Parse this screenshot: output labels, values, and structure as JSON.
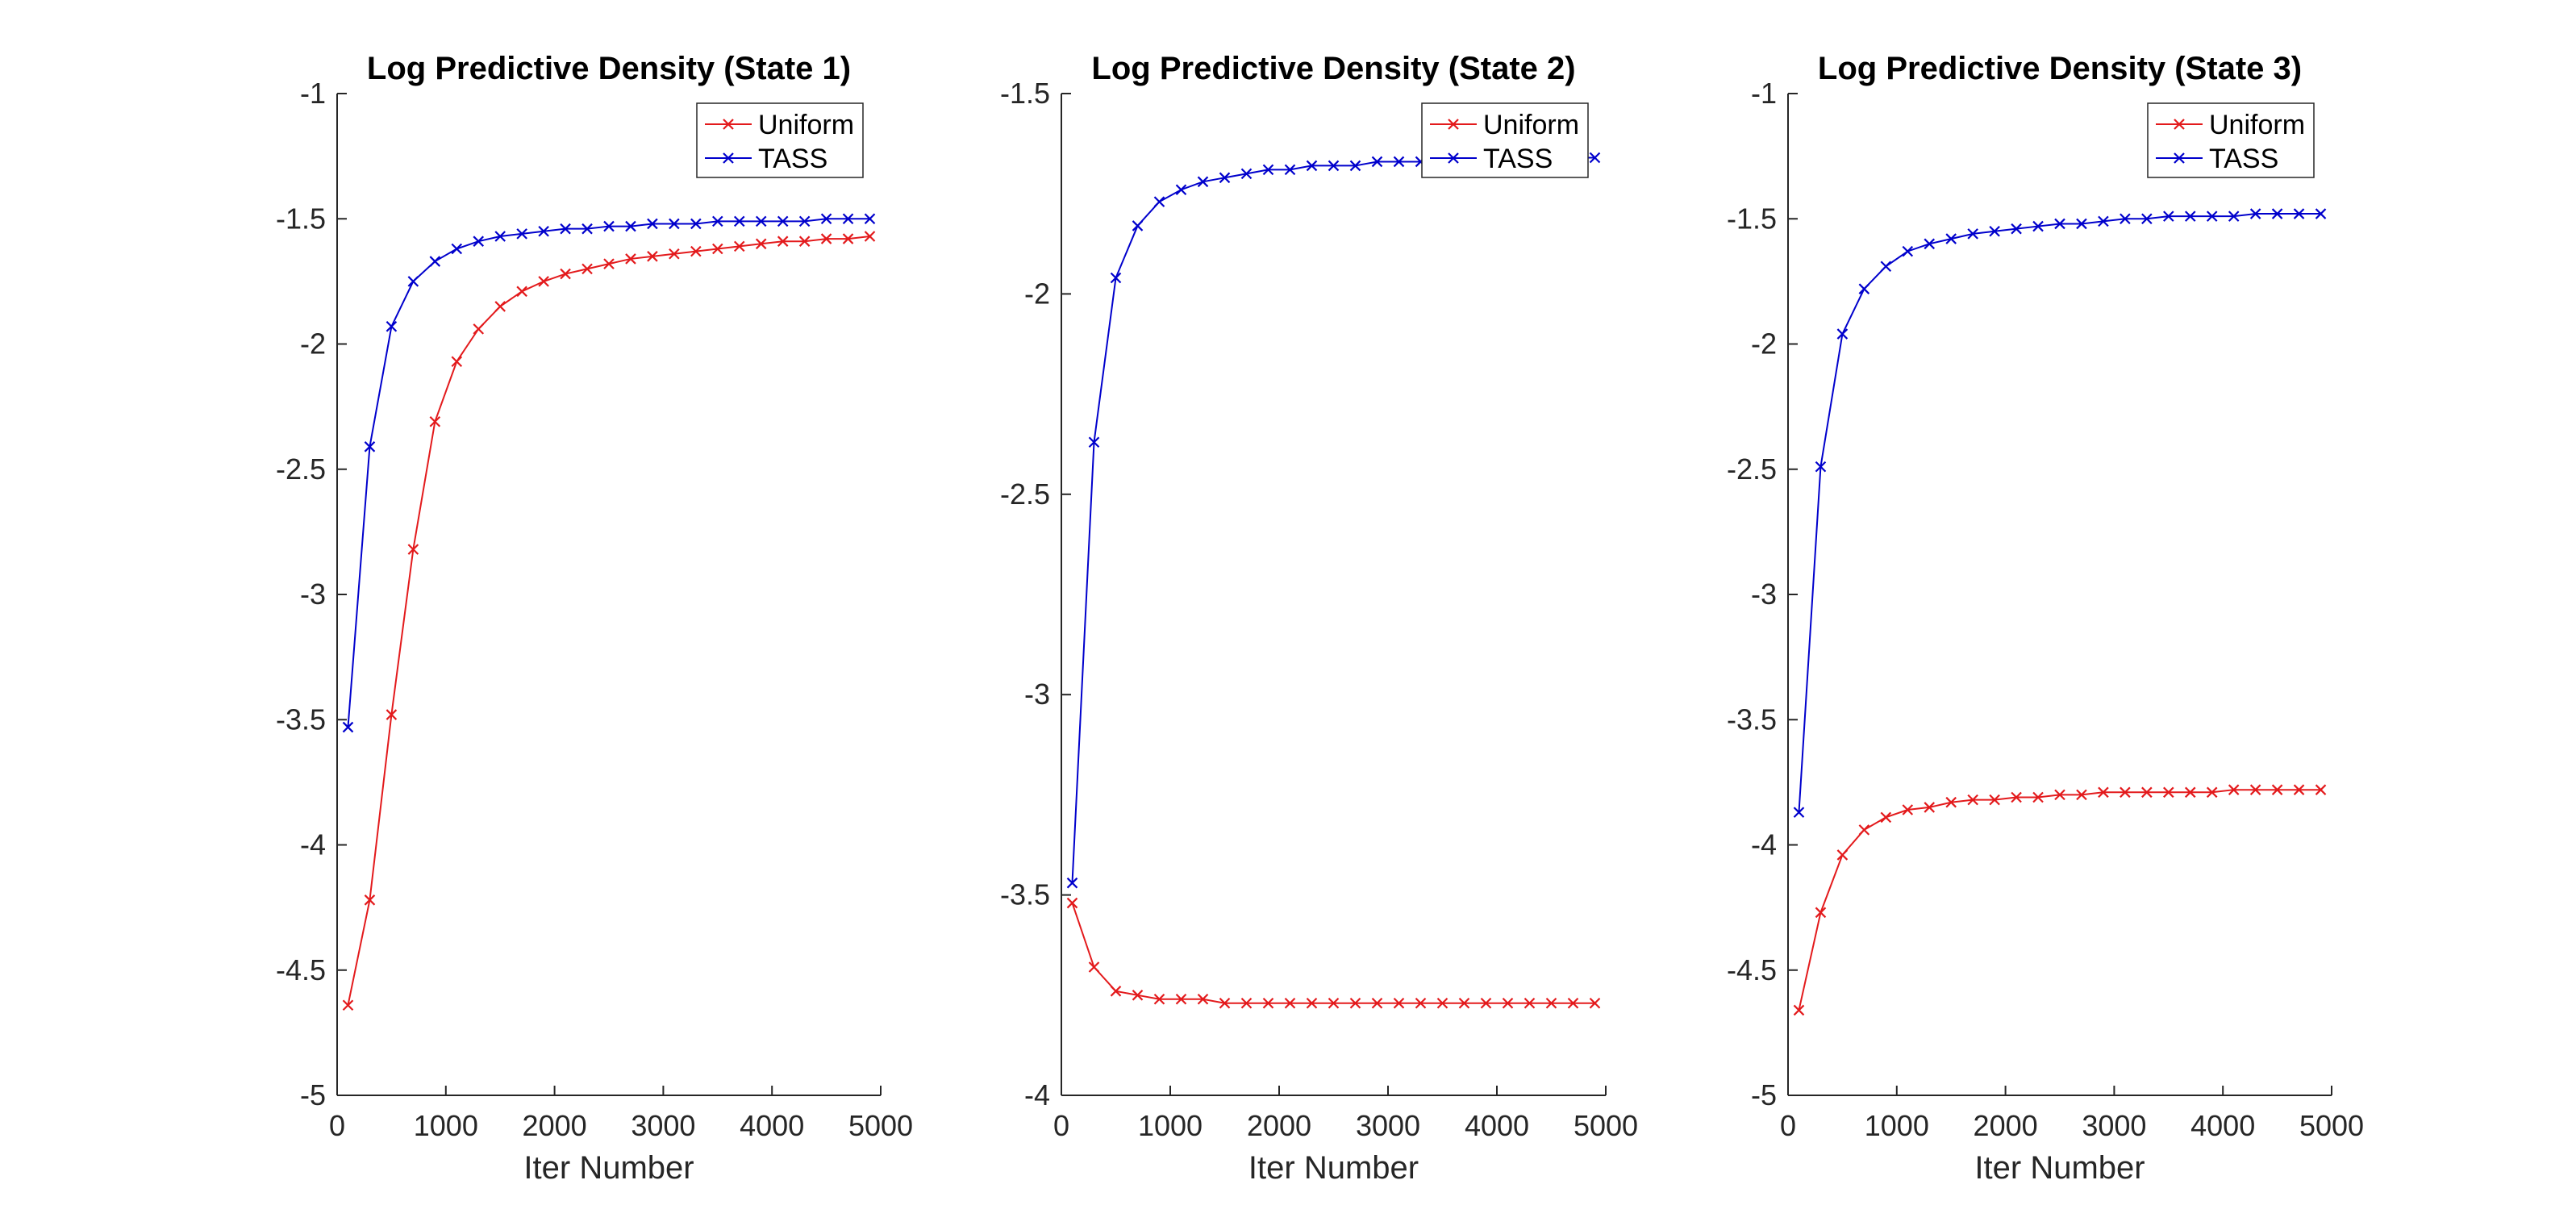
{
  "colors": {
    "uniform": "#e31a1c",
    "tass": "#0000cc"
  },
  "chart_data": [
    {
      "type": "line",
      "title": "Log Predictive Density (State 1)",
      "xlabel": "Iter Number",
      "ylabel": "",
      "xlim": [
        0,
        5000
      ],
      "ylim": [
        -5,
        -1
      ],
      "xticks": [
        0,
        1000,
        2000,
        3000,
        4000,
        5000
      ],
      "yticks": [
        -5,
        -4.5,
        -4,
        -3.5,
        -3,
        -2.5,
        -2,
        -1.5,
        -1
      ],
      "xtick_labels": [
        "0",
        "1000",
        "2000",
        "3000",
        "4000",
        "5000"
      ],
      "ytick_labels": [
        "-5",
        "-4.5",
        "-4",
        "-3.5",
        "-3",
        "-2.5",
        "-2",
        "-1.5",
        "-1"
      ],
      "legend_position": "top-right",
      "grid": false,
      "x": [
        100,
        300,
        500,
        700,
        900,
        1100,
        1300,
        1500,
        1700,
        1900,
        2100,
        2300,
        2500,
        2700,
        2900,
        3100,
        3300,
        3500,
        3700,
        3900,
        4100,
        4300,
        4500,
        4700,
        4900
      ],
      "series": [
        {
          "name": "Uniform",
          "color_key": "uniform",
          "values": [
            -4.64,
            -4.22,
            -3.48,
            -2.82,
            -2.31,
            -2.07,
            -1.94,
            -1.85,
            -1.79,
            -1.75,
            -1.72,
            -1.7,
            -1.68,
            -1.66,
            -1.65,
            -1.64,
            -1.63,
            -1.62,
            -1.61,
            -1.6,
            -1.59,
            -1.59,
            -1.58,
            -1.58,
            -1.57
          ]
        },
        {
          "name": "TASS",
          "color_key": "tass",
          "values": [
            -3.53,
            -2.41,
            -1.93,
            -1.75,
            -1.67,
            -1.62,
            -1.59,
            -1.57,
            -1.56,
            -1.55,
            -1.54,
            -1.54,
            -1.53,
            -1.53,
            -1.52,
            -1.52,
            -1.52,
            -1.51,
            -1.51,
            -1.51,
            -1.51,
            -1.51,
            -1.5,
            -1.5,
            -1.5
          ]
        }
      ]
    },
    {
      "type": "line",
      "title": "Log Predictive Density (State 2)",
      "xlabel": "Iter Number",
      "ylabel": "",
      "xlim": [
        0,
        5000
      ],
      "ylim": [
        -4,
        -1.5
      ],
      "xticks": [
        0,
        1000,
        2000,
        3000,
        4000,
        5000
      ],
      "yticks": [
        -4,
        -3.5,
        -3,
        -2.5,
        -2,
        -1.5
      ],
      "xtick_labels": [
        "0",
        "1000",
        "2000",
        "3000",
        "4000",
        "5000"
      ],
      "ytick_labels": [
        "-4",
        "-3.5",
        "-3",
        "-2.5",
        "-2",
        "-1.5"
      ],
      "legend_position": "top-right",
      "grid": false,
      "x": [
        100,
        300,
        500,
        700,
        900,
        1100,
        1300,
        1500,
        1700,
        1900,
        2100,
        2300,
        2500,
        2700,
        2900,
        3100,
        3300,
        3500,
        3700,
        3900,
        4100,
        4300,
        4500,
        4700,
        4900
      ],
      "series": [
        {
          "name": "Uniform",
          "color_key": "uniform",
          "values": [
            -3.52,
            -3.68,
            -3.74,
            -3.75,
            -3.76,
            -3.76,
            -3.76,
            -3.77,
            -3.77,
            -3.77,
            -3.77,
            -3.77,
            -3.77,
            -3.77,
            -3.77,
            -3.77,
            -3.77,
            -3.77,
            -3.77,
            -3.77,
            -3.77,
            -3.77,
            -3.77,
            -3.77,
            -3.77
          ]
        },
        {
          "name": "TASS",
          "color_key": "tass",
          "values": [
            -3.47,
            -2.37,
            -1.96,
            -1.83,
            -1.77,
            -1.74,
            -1.72,
            -1.71,
            -1.7,
            -1.69,
            -1.69,
            -1.68,
            -1.68,
            -1.68,
            -1.67,
            -1.67,
            -1.67,
            -1.67,
            -1.67,
            -1.67,
            -1.67,
            -1.66,
            -1.66,
            -1.66,
            -1.66
          ]
        }
      ]
    },
    {
      "type": "line",
      "title": "Log Predictive Density (State 3)",
      "xlabel": "Iter Number",
      "ylabel": "",
      "xlim": [
        0,
        5000
      ],
      "ylim": [
        -5,
        -1
      ],
      "xticks": [
        0,
        1000,
        2000,
        3000,
        4000,
        5000
      ],
      "yticks": [
        -5,
        -4.5,
        -4,
        -3.5,
        -3,
        -2.5,
        -2,
        -1.5,
        -1
      ],
      "xtick_labels": [
        "0",
        "1000",
        "2000",
        "3000",
        "4000",
        "5000"
      ],
      "ytick_labels": [
        "-5",
        "-4.5",
        "-4",
        "-3.5",
        "-3",
        "-2.5",
        "-2",
        "-1.5",
        "-1"
      ],
      "legend_position": "top-right",
      "grid": false,
      "x": [
        100,
        300,
        500,
        700,
        900,
        1100,
        1300,
        1500,
        1700,
        1900,
        2100,
        2300,
        2500,
        2700,
        2900,
        3100,
        3300,
        3500,
        3700,
        3900,
        4100,
        4300,
        4500,
        4700,
        4900
      ],
      "series": [
        {
          "name": "Uniform",
          "color_key": "uniform",
          "values": [
            -4.66,
            -4.27,
            -4.04,
            -3.94,
            -3.89,
            -3.86,
            -3.85,
            -3.83,
            -3.82,
            -3.82,
            -3.81,
            -3.81,
            -3.8,
            -3.8,
            -3.79,
            -3.79,
            -3.79,
            -3.79,
            -3.79,
            -3.79,
            -3.78,
            -3.78,
            -3.78,
            -3.78,
            -3.78
          ]
        },
        {
          "name": "TASS",
          "color_key": "tass",
          "values": [
            -3.87,
            -2.49,
            -1.96,
            -1.78,
            -1.69,
            -1.63,
            -1.6,
            -1.58,
            -1.56,
            -1.55,
            -1.54,
            -1.53,
            -1.52,
            -1.52,
            -1.51,
            -1.5,
            -1.5,
            -1.49,
            -1.49,
            -1.49,
            -1.49,
            -1.48,
            -1.48,
            -1.48,
            -1.48
          ]
        }
      ]
    }
  ]
}
